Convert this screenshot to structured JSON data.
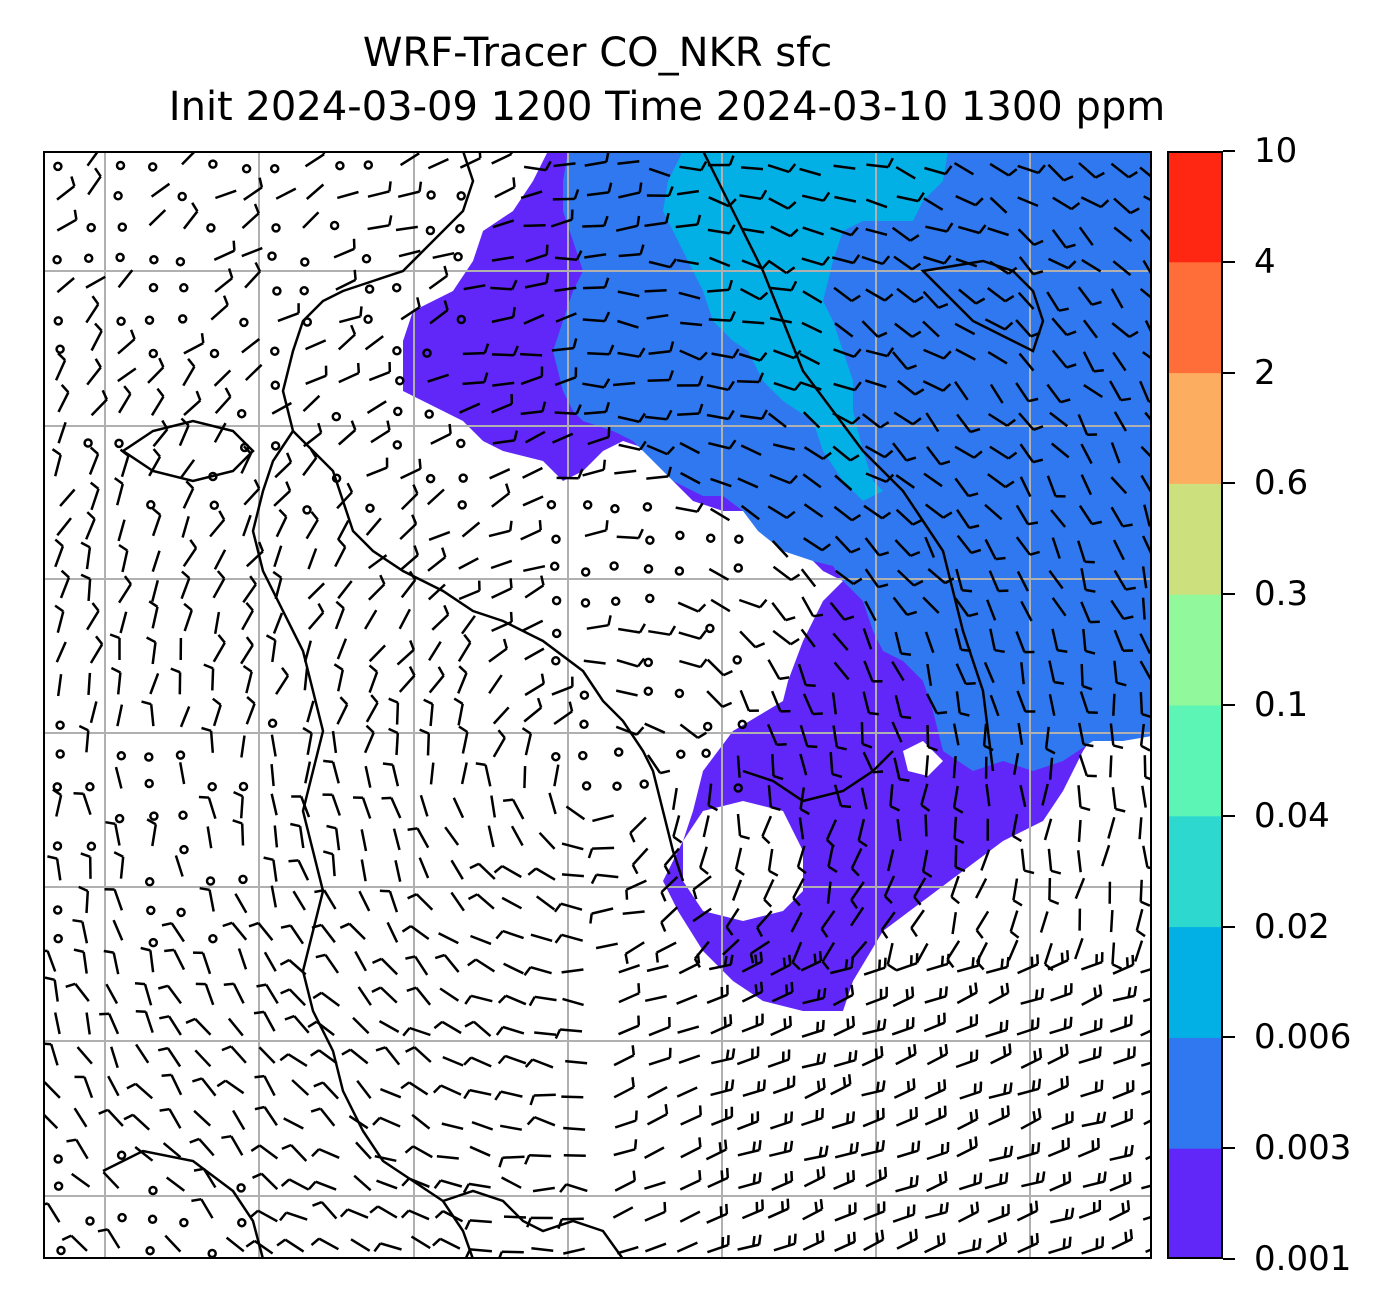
{
  "title": {
    "line1": "WRF-Tracer CO_NKR sfc",
    "line2": "Init 2024-03-09 1200 Time 2024-03-10 1300 ppm"
  },
  "map": {
    "variable": "CO_NKR",
    "level": "sfc",
    "units": "ppm",
    "overlays": [
      "coastlines",
      "gridlines",
      "wind-barbs"
    ],
    "gridlines": true
  },
  "colorbar": {
    "levels": [
      "0.001",
      "0.003",
      "0.006",
      "0.02",
      "0.04",
      "0.1",
      "0.3",
      "0.6",
      "2",
      "4",
      "10"
    ],
    "colors": [
      "#6127f8",
      "#2f78ef",
      "#02b0e6",
      "#2dd9cf",
      "#5cf5b6",
      "#91f99b",
      "#cde07e",
      "#fcad5f",
      "#ff6d39",
      "#ff2712"
    ]
  },
  "chart_data": {
    "type": "heatmap",
    "title": "WRF-Tracer CO_NKR sfc\nInit 2024-03-09 1200 Time 2024-03-10 1300 ppm",
    "colorbar_ticks": [
      0.001,
      0.003,
      0.006,
      0.02,
      0.04,
      0.1,
      0.3,
      0.6,
      2,
      4,
      10
    ],
    "grid": true
  }
}
